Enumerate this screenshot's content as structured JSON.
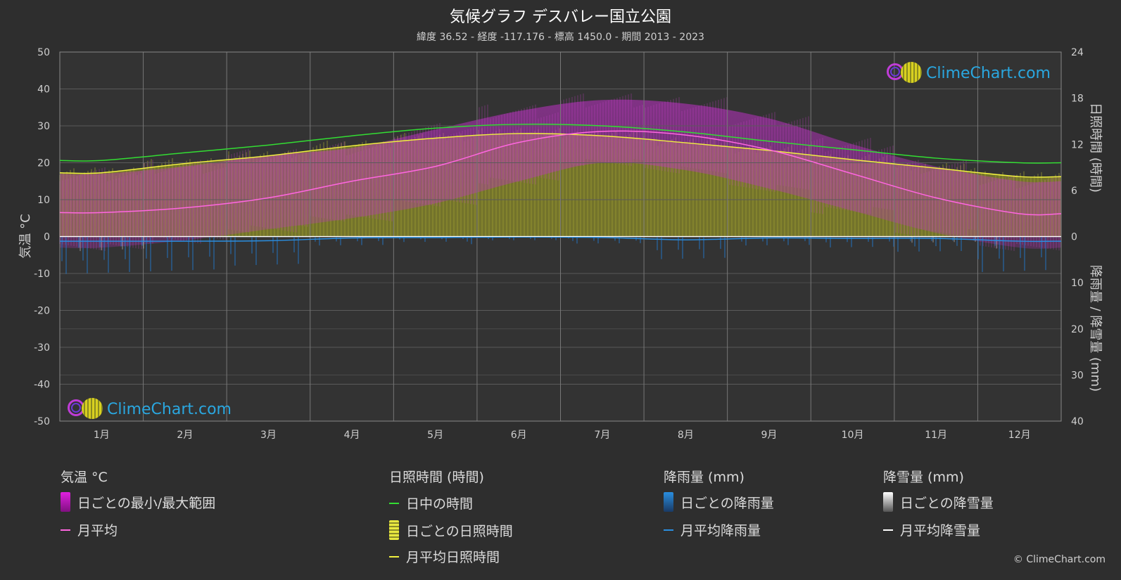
{
  "header": {
    "title": "気候グラフ デスバレー国立公園",
    "subtitle": "緯度 36.52 - 経度 -117.176 - 標高 1450.0 - 期間 2013 - 2023"
  },
  "brand": {
    "name": "ClimeChart.com",
    "copyright": "© ClimeChart.com"
  },
  "colors": {
    "background": "#2e2e2e",
    "grid": "#5a5a5a",
    "temp_range": "#e040e0",
    "temp_avg": "#ff66e0",
    "daylight": "#33dd33",
    "sunshine_daily": "#c8c832",
    "sunshine_avg": "#f0f040",
    "rain_daily": "#2277cc",
    "rain_avg": "#2a8ee0",
    "snow_daily": "#bbbbbb",
    "snow_avg": "#ffffff"
  },
  "legend": {
    "temperature": {
      "heading": "気温 °C",
      "range_label": "日ごとの最小/最大範囲",
      "avg_label": "月平均"
    },
    "sunshine": {
      "heading": "日照時間 (時間)",
      "daylight_label": "日中の時間",
      "daily_label": "日ごとの日照時間",
      "avg_label": "月平均日照時間"
    },
    "rain": {
      "heading": "降雨量 (mm)",
      "daily_label": "日ごとの降雨量",
      "avg_label": "月平均降雨量"
    },
    "snow": {
      "heading": "降雪量 (mm)",
      "daily_label": "日ごとの降雪量",
      "avg_label": "月平均降雪量"
    }
  },
  "chart_data": {
    "type": "line",
    "categories": [
      "1月",
      "2月",
      "3月",
      "4月",
      "5月",
      "6月",
      "7月",
      "8月",
      "9月",
      "10月",
      "11月",
      "12月"
    ],
    "left_axis": {
      "label": "気温 °C",
      "range": [
        -50,
        50
      ],
      "ticks": [
        50,
        40,
        30,
        20,
        10,
        0,
        -10,
        -20,
        -30,
        -40,
        -50
      ]
    },
    "right_axis_top": {
      "label": "日照時間 (時間)",
      "range": [
        0,
        24
      ],
      "ticks": [
        24,
        18,
        12,
        6,
        0
      ]
    },
    "right_axis_bottom": {
      "label": "降雨量 / 降雪量 (mm)",
      "range": [
        0,
        40
      ],
      "ticks": [
        0,
        10,
        20,
        30,
        40
      ]
    },
    "series": [
      {
        "name": "月平均",
        "axis": "temperature",
        "values": [
          6.5,
          7.8,
          10.5,
          15.0,
          19.0,
          25.5,
          28.5,
          27.5,
          23.5,
          17.0,
          10.5,
          6.2
        ]
      },
      {
        "name": "日ごとの最小/最大範囲",
        "axis": "temperature",
        "min": [
          -3,
          -1,
          2,
          5,
          9,
          15,
          20,
          18,
          13,
          7,
          1,
          -3
        ],
        "max": [
          17,
          19,
          22,
          24,
          29,
          34,
          37,
          36,
          32,
          25,
          19,
          15
        ]
      },
      {
        "name": "日中の時間",
        "axis": "sunshine",
        "values": [
          9.9,
          10.9,
          11.9,
          13.1,
          14.1,
          14.6,
          14.4,
          13.6,
          12.4,
          11.3,
          10.2,
          9.6
        ]
      },
      {
        "name": "月平均日照時間",
        "axis": "sunshine",
        "values": [
          8.3,
          9.5,
          10.5,
          11.8,
          12.8,
          13.4,
          13.1,
          12.2,
          11.2,
          10.0,
          8.9,
          7.8
        ]
      },
      {
        "name": "月平均降雨量",
        "axis": "precipitation",
        "values": [
          1.0,
          1.0,
          0.9,
          0.3,
          0.2,
          0.1,
          0.2,
          0.7,
          0.3,
          0.4,
          0.4,
          1.0
        ]
      },
      {
        "name": "月平均降雪量",
        "axis": "precipitation",
        "values": [
          0,
          0,
          0,
          0,
          0,
          0,
          0,
          0,
          0,
          0,
          0,
          0
        ]
      }
    ],
    "grid": true
  }
}
